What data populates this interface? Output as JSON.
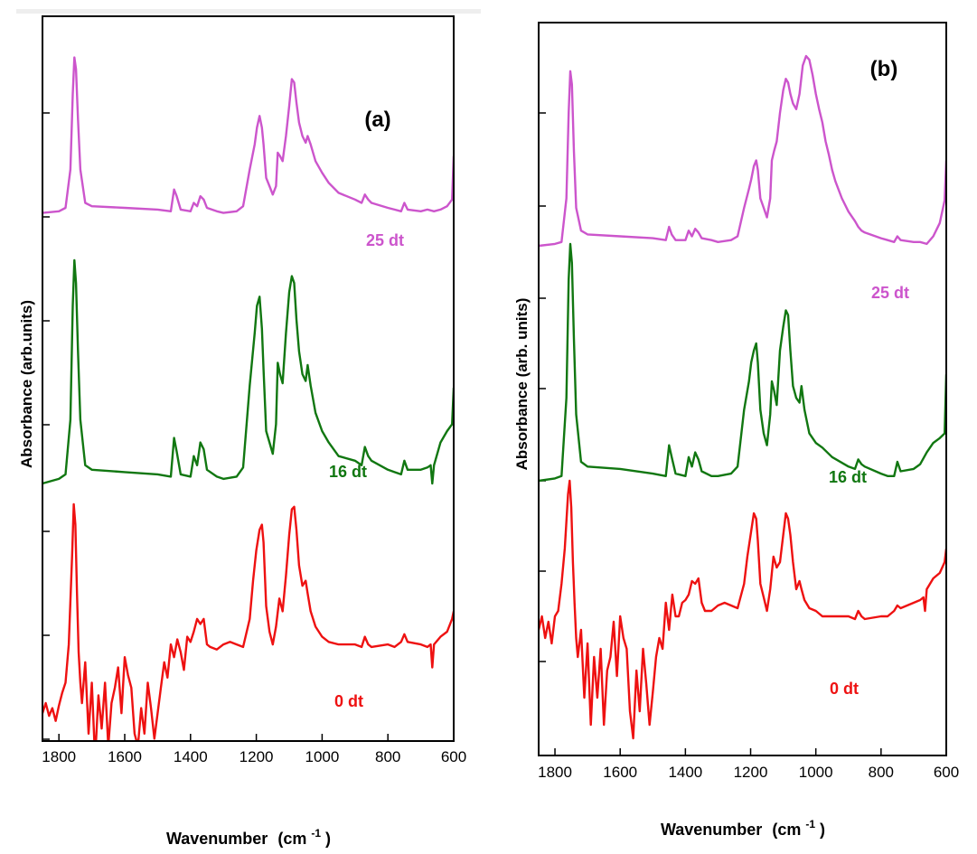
{
  "chart_data": [
    {
      "type": "line",
      "panel_label": "(a)",
      "xlabel": "Wavenumber",
      "xunit": "(cm",
      "xunit_sup": "-1",
      "xunit_close": ")",
      "ylabel": "Absorbance (arb.units)",
      "xlim": [
        1850,
        600
      ],
      "xticks": [
        "1800",
        "1600",
        "1400",
        "1200",
        "1000",
        "800",
        "600"
      ],
      "ylim": [
        0,
        1
      ],
      "grid": false,
      "series": [
        {
          "name": "25 dt",
          "color": "#cc55cc",
          "x": [
            1850,
            1800,
            1780,
            1765,
            1758,
            1753,
            1748,
            1742,
            1735,
            1720,
            1700,
            1600,
            1500,
            1460,
            1450,
            1442,
            1430,
            1400,
            1390,
            1380,
            1370,
            1360,
            1350,
            1320,
            1300,
            1260,
            1240,
            1220,
            1205,
            1198,
            1190,
            1183,
            1178,
            1170,
            1160,
            1150,
            1140,
            1135,
            1128,
            1120,
            1110,
            1100,
            1092,
            1085,
            1078,
            1070,
            1060,
            1050,
            1044,
            1035,
            1020,
            1000,
            980,
            950,
            900,
            880,
            870,
            860,
            850,
            800,
            780,
            760,
            750,
            740,
            700,
            680,
            660,
            640,
            620,
            605,
            600
          ],
          "y": [
            0.04,
            0.05,
            0.07,
            0.3,
            0.75,
            0.97,
            0.9,
            0.6,
            0.3,
            0.1,
            0.08,
            0.07,
            0.06,
            0.05,
            0.18,
            0.14,
            0.06,
            0.05,
            0.1,
            0.08,
            0.14,
            0.12,
            0.07,
            0.05,
            0.04,
            0.05,
            0.08,
            0.3,
            0.45,
            0.55,
            0.62,
            0.55,
            0.45,
            0.25,
            0.2,
            0.15,
            0.2,
            0.4,
            0.38,
            0.35,
            0.5,
            0.68,
            0.84,
            0.82,
            0.7,
            0.58,
            0.5,
            0.46,
            0.5,
            0.45,
            0.35,
            0.28,
            0.22,
            0.16,
            0.12,
            0.1,
            0.15,
            0.12,
            0.1,
            0.07,
            0.06,
            0.05,
            0.1,
            0.06,
            0.05,
            0.06,
            0.05,
            0.06,
            0.08,
            0.12,
            0.38
          ]
        },
        {
          "name": "16 dt",
          "color": "#117711",
          "x": [
            1850,
            1800,
            1780,
            1765,
            1758,
            1753,
            1748,
            1742,
            1735,
            1720,
            1700,
            1600,
            1500,
            1460,
            1450,
            1442,
            1430,
            1400,
            1390,
            1380,
            1370,
            1360,
            1350,
            1320,
            1300,
            1260,
            1240,
            1220,
            1205,
            1198,
            1190,
            1183,
            1178,
            1170,
            1160,
            1150,
            1140,
            1135,
            1128,
            1120,
            1110,
            1100,
            1092,
            1085,
            1078,
            1070,
            1060,
            1050,
            1044,
            1035,
            1020,
            1000,
            980,
            950,
            900,
            880,
            870,
            860,
            850,
            800,
            780,
            760,
            750,
            740,
            700,
            680,
            670,
            665,
            660,
            640,
            620,
            605,
            600
          ],
          "y": [
            0.02,
            0.04,
            0.06,
            0.3,
            0.8,
            1.0,
            0.9,
            0.6,
            0.3,
            0.1,
            0.08,
            0.07,
            0.06,
            0.05,
            0.22,
            0.16,
            0.06,
            0.05,
            0.14,
            0.1,
            0.2,
            0.17,
            0.08,
            0.05,
            0.04,
            0.05,
            0.09,
            0.45,
            0.68,
            0.8,
            0.84,
            0.7,
            0.52,
            0.25,
            0.2,
            0.15,
            0.28,
            0.55,
            0.5,
            0.46,
            0.68,
            0.86,
            0.93,
            0.9,
            0.74,
            0.6,
            0.5,
            0.47,
            0.54,
            0.45,
            0.33,
            0.25,
            0.2,
            0.14,
            0.12,
            0.1,
            0.18,
            0.14,
            0.12,
            0.08,
            0.07,
            0.06,
            0.12,
            0.08,
            0.08,
            0.09,
            0.1,
            0.02,
            0.1,
            0.2,
            0.25,
            0.28,
            0.44
          ]
        },
        {
          "name": "0 dt",
          "color": "#ee1111",
          "x": [
            1850,
            1840,
            1830,
            1820,
            1810,
            1800,
            1790,
            1780,
            1770,
            1760,
            1755,
            1750,
            1745,
            1740,
            1735,
            1730,
            1720,
            1710,
            1700,
            1690,
            1680,
            1670,
            1660,
            1650,
            1640,
            1630,
            1620,
            1610,
            1600,
            1590,
            1580,
            1570,
            1560,
            1550,
            1540,
            1530,
            1520,
            1510,
            1500,
            1490,
            1480,
            1470,
            1460,
            1450,
            1440,
            1430,
            1420,
            1410,
            1400,
            1390,
            1380,
            1370,
            1360,
            1350,
            1340,
            1320,
            1300,
            1280,
            1260,
            1240,
            1220,
            1210,
            1200,
            1190,
            1183,
            1178,
            1170,
            1160,
            1150,
            1140,
            1130,
            1120,
            1110,
            1100,
            1092,
            1085,
            1078,
            1070,
            1060,
            1050,
            1044,
            1035,
            1020,
            1000,
            980,
            950,
            900,
            880,
            870,
            860,
            850,
            800,
            780,
            760,
            750,
            740,
            700,
            680,
            670,
            665,
            660,
            640,
            620,
            605,
            600
          ],
          "y": [
            0.18,
            0.22,
            0.17,
            0.2,
            0.15,
            0.21,
            0.26,
            0.3,
            0.45,
            0.8,
            1.0,
            0.92,
            0.65,
            0.42,
            0.3,
            0.22,
            0.38,
            0.1,
            0.3,
            0.0,
            0.25,
            0.12,
            0.3,
            0.05,
            0.22,
            0.28,
            0.36,
            0.18,
            0.4,
            0.33,
            0.28,
            0.1,
            0.05,
            0.2,
            0.1,
            0.3,
            0.2,
            0.08,
            0.18,
            0.28,
            0.38,
            0.32,
            0.45,
            0.4,
            0.47,
            0.42,
            0.35,
            0.48,
            0.46,
            0.5,
            0.55,
            0.53,
            0.55,
            0.45,
            0.44,
            0.43,
            0.45,
            0.46,
            0.45,
            0.44,
            0.55,
            0.7,
            0.82,
            0.9,
            0.92,
            0.85,
            0.6,
            0.5,
            0.45,
            0.52,
            0.63,
            0.58,
            0.72,
            0.88,
            0.98,
            0.99,
            0.9,
            0.76,
            0.68,
            0.7,
            0.65,
            0.58,
            0.52,
            0.48,
            0.46,
            0.45,
            0.45,
            0.44,
            0.48,
            0.45,
            0.44,
            0.45,
            0.44,
            0.46,
            0.49,
            0.46,
            0.45,
            0.44,
            0.45,
            0.36,
            0.45,
            0.48,
            0.5,
            0.55,
            0.58
          ]
        }
      ]
    },
    {
      "type": "line",
      "panel_label": "(b)",
      "xlabel": "Wavenumber",
      "xunit": "(cm",
      "xunit_sup": "-1",
      "xunit_close": ")",
      "ylabel": "Absorbance (arb. units)",
      "xlim": [
        1850,
        600
      ],
      "xticks": [
        "1800",
        "1600",
        "1400",
        "1200",
        "1000",
        "800",
        "600"
      ],
      "ylim": [
        0,
        1
      ],
      "grid": false,
      "series": [
        {
          "name": "25 dt",
          "color": "#cc55cc",
          "x": [
            1850,
            1800,
            1780,
            1765,
            1758,
            1753,
            1748,
            1742,
            1735,
            1720,
            1700,
            1600,
            1500,
            1460,
            1450,
            1442,
            1430,
            1400,
            1390,
            1380,
            1370,
            1360,
            1350,
            1320,
            1300,
            1260,
            1240,
            1220,
            1205,
            1198,
            1190,
            1183,
            1178,
            1170,
            1160,
            1150,
            1140,
            1135,
            1128,
            1120,
            1110,
            1100,
            1092,
            1085,
            1078,
            1070,
            1060,
            1050,
            1040,
            1030,
            1020,
            1010,
            1000,
            990,
            980,
            970,
            960,
            950,
            940,
            920,
            900,
            880,
            870,
            860,
            850,
            800,
            780,
            760,
            750,
            740,
            700,
            680,
            660,
            640,
            620,
            605,
            600
          ],
          "y": [
            0.0,
            0.01,
            0.02,
            0.25,
            0.7,
            0.92,
            0.85,
            0.5,
            0.2,
            0.08,
            0.06,
            0.05,
            0.04,
            0.03,
            0.1,
            0.06,
            0.03,
            0.03,
            0.08,
            0.05,
            0.09,
            0.07,
            0.04,
            0.03,
            0.02,
            0.03,
            0.05,
            0.2,
            0.3,
            0.35,
            0.42,
            0.45,
            0.4,
            0.25,
            0.2,
            0.15,
            0.25,
            0.45,
            0.5,
            0.55,
            0.7,
            0.82,
            0.88,
            0.86,
            0.8,
            0.75,
            0.72,
            0.8,
            0.95,
            1.0,
            0.98,
            0.9,
            0.8,
            0.72,
            0.65,
            0.55,
            0.48,
            0.4,
            0.34,
            0.25,
            0.18,
            0.13,
            0.1,
            0.08,
            0.07,
            0.04,
            0.03,
            0.02,
            0.05,
            0.03,
            0.02,
            0.02,
            0.01,
            0.05,
            0.12,
            0.24,
            0.45
          ]
        },
        {
          "name": "16 dt",
          "color": "#117711",
          "x": [
            1850,
            1800,
            1780,
            1765,
            1758,
            1753,
            1748,
            1742,
            1735,
            1720,
            1700,
            1600,
            1500,
            1460,
            1450,
            1442,
            1430,
            1400,
            1390,
            1380,
            1370,
            1360,
            1350,
            1320,
            1300,
            1260,
            1240,
            1220,
            1205,
            1198,
            1190,
            1183,
            1178,
            1170,
            1160,
            1150,
            1140,
            1135,
            1128,
            1120,
            1110,
            1100,
            1092,
            1085,
            1078,
            1070,
            1060,
            1050,
            1044,
            1035,
            1020,
            1000,
            980,
            950,
            900,
            880,
            870,
            860,
            850,
            800,
            780,
            760,
            750,
            740,
            700,
            680,
            660,
            640,
            620,
            605,
            600
          ],
          "y": [
            0.0,
            0.01,
            0.02,
            0.35,
            0.85,
            1.0,
            0.92,
            0.6,
            0.28,
            0.08,
            0.06,
            0.05,
            0.03,
            0.02,
            0.15,
            0.1,
            0.03,
            0.02,
            0.1,
            0.06,
            0.12,
            0.09,
            0.04,
            0.02,
            0.02,
            0.03,
            0.06,
            0.3,
            0.42,
            0.5,
            0.55,
            0.58,
            0.5,
            0.3,
            0.2,
            0.15,
            0.28,
            0.42,
            0.38,
            0.32,
            0.55,
            0.65,
            0.72,
            0.7,
            0.55,
            0.4,
            0.35,
            0.33,
            0.4,
            0.3,
            0.2,
            0.16,
            0.14,
            0.1,
            0.06,
            0.05,
            0.09,
            0.07,
            0.06,
            0.03,
            0.02,
            0.02,
            0.08,
            0.04,
            0.05,
            0.07,
            0.12,
            0.16,
            0.18,
            0.2,
            0.45
          ]
        },
        {
          "name": "0 dt",
          "color": "#ee1111",
          "x": [
            1850,
            1840,
            1830,
            1820,
            1810,
            1800,
            1790,
            1780,
            1770,
            1760,
            1755,
            1750,
            1745,
            1740,
            1735,
            1730,
            1720,
            1710,
            1700,
            1690,
            1680,
            1670,
            1660,
            1650,
            1640,
            1630,
            1620,
            1610,
            1600,
            1590,
            1580,
            1570,
            1560,
            1550,
            1540,
            1530,
            1520,
            1510,
            1500,
            1490,
            1480,
            1470,
            1460,
            1450,
            1440,
            1430,
            1420,
            1410,
            1400,
            1390,
            1380,
            1370,
            1360,
            1350,
            1340,
            1320,
            1300,
            1280,
            1260,
            1240,
            1220,
            1210,
            1200,
            1190,
            1183,
            1178,
            1170,
            1160,
            1150,
            1140,
            1130,
            1120,
            1110,
            1100,
            1092,
            1085,
            1078,
            1070,
            1060,
            1050,
            1044,
            1035,
            1020,
            1000,
            980,
            950,
            900,
            880,
            870,
            860,
            850,
            800,
            780,
            760,
            750,
            740,
            700,
            680,
            670,
            665,
            660,
            640,
            620,
            605,
            600
          ],
          "y": [
            0.45,
            0.5,
            0.42,
            0.48,
            0.4,
            0.5,
            0.52,
            0.62,
            0.75,
            0.95,
            1.0,
            0.9,
            0.7,
            0.55,
            0.42,
            0.35,
            0.45,
            0.2,
            0.4,
            0.1,
            0.35,
            0.2,
            0.38,
            0.1,
            0.3,
            0.35,
            0.48,
            0.28,
            0.5,
            0.42,
            0.38,
            0.15,
            0.05,
            0.3,
            0.15,
            0.38,
            0.25,
            0.1,
            0.22,
            0.35,
            0.42,
            0.38,
            0.55,
            0.45,
            0.58,
            0.5,
            0.5,
            0.55,
            0.56,
            0.58,
            0.63,
            0.62,
            0.64,
            0.55,
            0.52,
            0.52,
            0.54,
            0.55,
            0.54,
            0.53,
            0.62,
            0.72,
            0.8,
            0.88,
            0.86,
            0.78,
            0.62,
            0.57,
            0.52,
            0.6,
            0.72,
            0.68,
            0.7,
            0.8,
            0.88,
            0.86,
            0.8,
            0.7,
            0.6,
            0.63,
            0.6,
            0.56,
            0.53,
            0.52,
            0.5,
            0.5,
            0.5,
            0.49,
            0.52,
            0.5,
            0.49,
            0.5,
            0.5,
            0.52,
            0.54,
            0.53,
            0.55,
            0.56,
            0.57,
            0.52,
            0.6,
            0.64,
            0.66,
            0.7,
            0.75
          ]
        }
      ]
    }
  ]
}
